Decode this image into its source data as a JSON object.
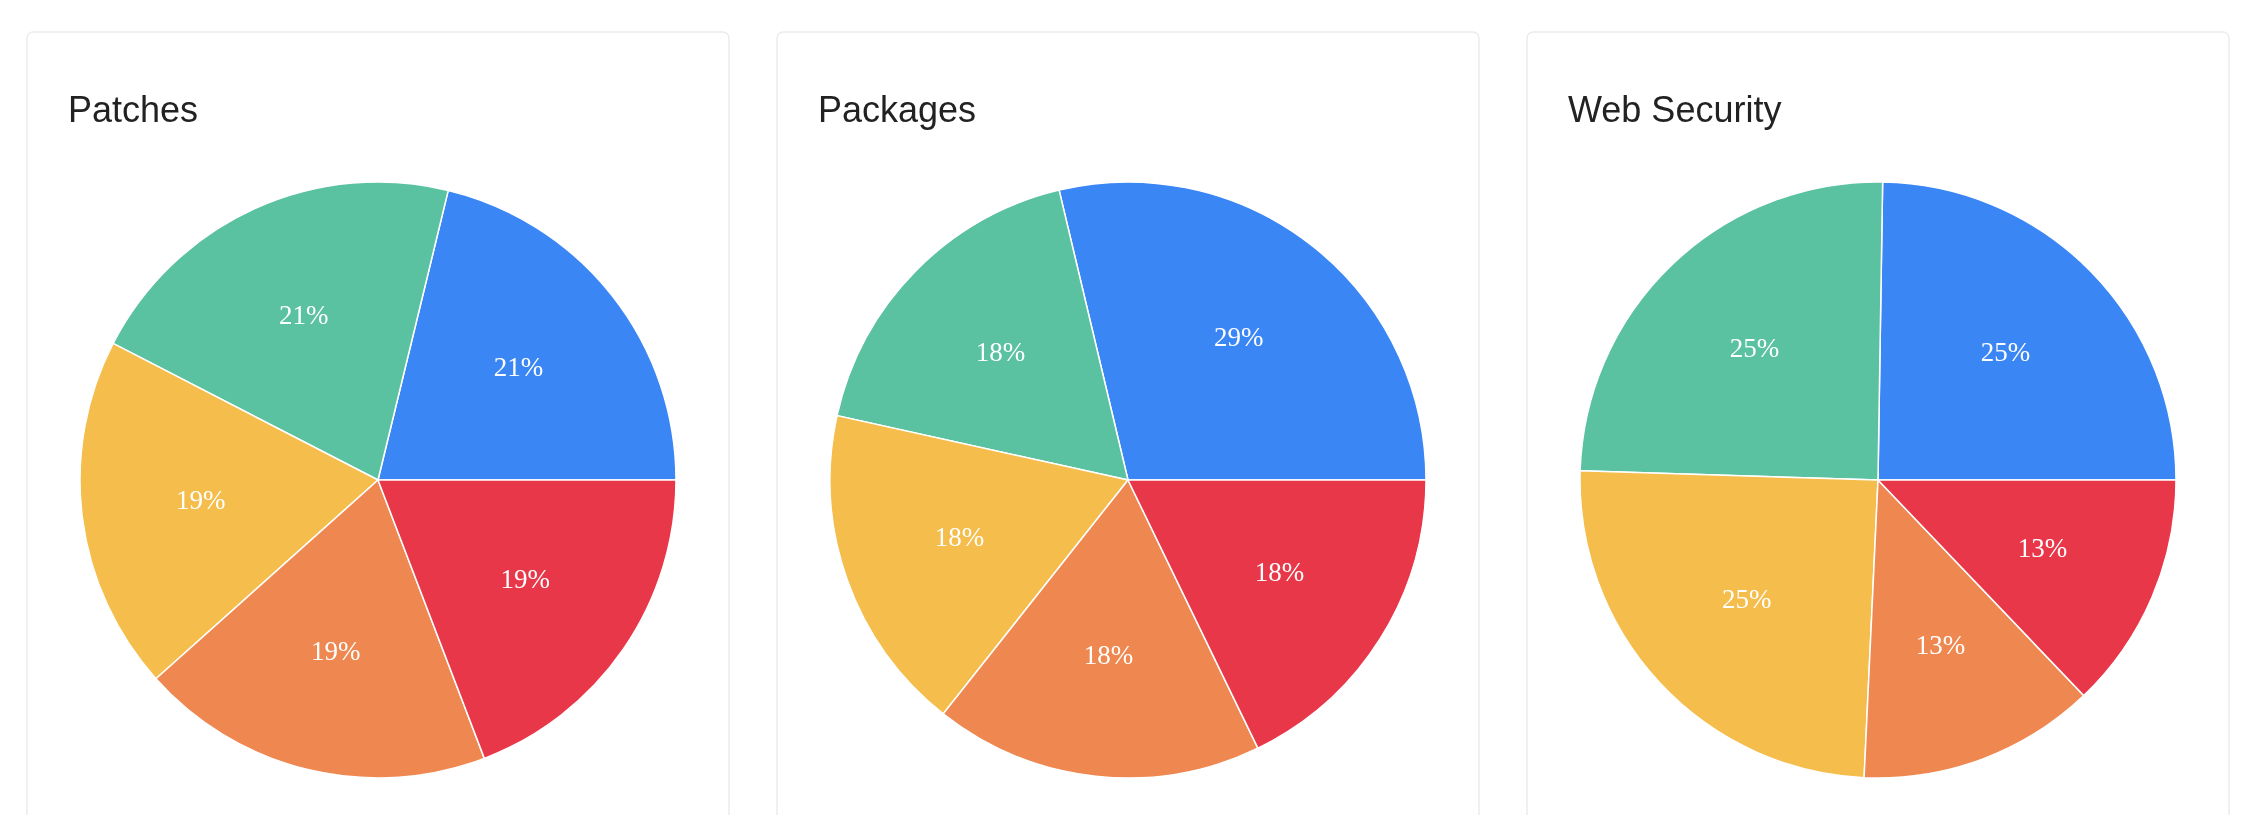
{
  "chart_data": [
    {
      "type": "pie",
      "title": "Patches",
      "categories": [
        null,
        null,
        null,
        null,
        null
      ],
      "values": [
        21,
        21,
        19,
        19,
        19
      ],
      "value_labels": [
        "21%",
        "21%",
        "19%",
        "19%",
        "19%"
      ],
      "colors": [
        "#3b86f5",
        "#5ac1a1",
        "#f4bd4c",
        "#ef8850",
        "#e9374a"
      ]
    },
    {
      "type": "pie",
      "title": "Packages",
      "categories": [
        null,
        null,
        null,
        null,
        null
      ],
      "values": [
        29,
        18,
        18,
        18,
        18
      ],
      "value_labels": [
        "29%",
        "18%",
        "18%",
        "18%",
        "18%"
      ],
      "colors": [
        "#3b86f5",
        "#5ac1a1",
        "#f4bd4c",
        "#ef8850",
        "#e9374a"
      ]
    },
    {
      "type": "pie",
      "title": "Web Security",
      "categories": [
        null,
        null,
        null,
        null,
        null
      ],
      "values": [
        25,
        25,
        25,
        13,
        13
      ],
      "value_labels": [
        "25%",
        "25%",
        "25%",
        "13%",
        "13%"
      ],
      "colors": [
        "#3b86f5",
        "#5ac1a1",
        "#f4bd4c",
        "#ef8850",
        "#e9374a"
      ]
    }
  ]
}
